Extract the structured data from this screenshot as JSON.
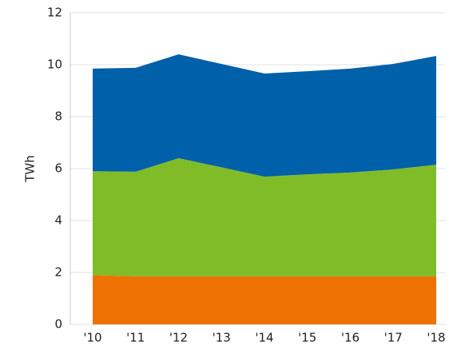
{
  "chart_data": {
    "type": "stacked_area",
    "y_label": "TWh",
    "categories": [
      "'10",
      "'11",
      "'12",
      "'13",
      "'14",
      "'15",
      "'16",
      "'17",
      "'18"
    ],
    "series": [
      {
        "color": "#ee7203",
        "values": [
          1.9,
          1.85,
          1.85,
          1.85,
          1.85,
          1.85,
          1.85,
          1.85,
          1.85
        ]
      },
      {
        "color": "#80bc28",
        "values": [
          4.0,
          4.03,
          4.55,
          4.2,
          3.84,
          3.93,
          4.0,
          4.12,
          4.3
        ]
      },
      {
        "color": "#0060a9",
        "values": [
          3.95,
          4.0,
          4.0,
          3.98,
          3.97,
          3.97,
          4.0,
          4.06,
          4.19
        ]
      }
    ],
    "ylim": [
      0,
      12
    ],
    "yticks": [
      0,
      2,
      4,
      6,
      8,
      10,
      12
    ],
    "grid": true
  }
}
